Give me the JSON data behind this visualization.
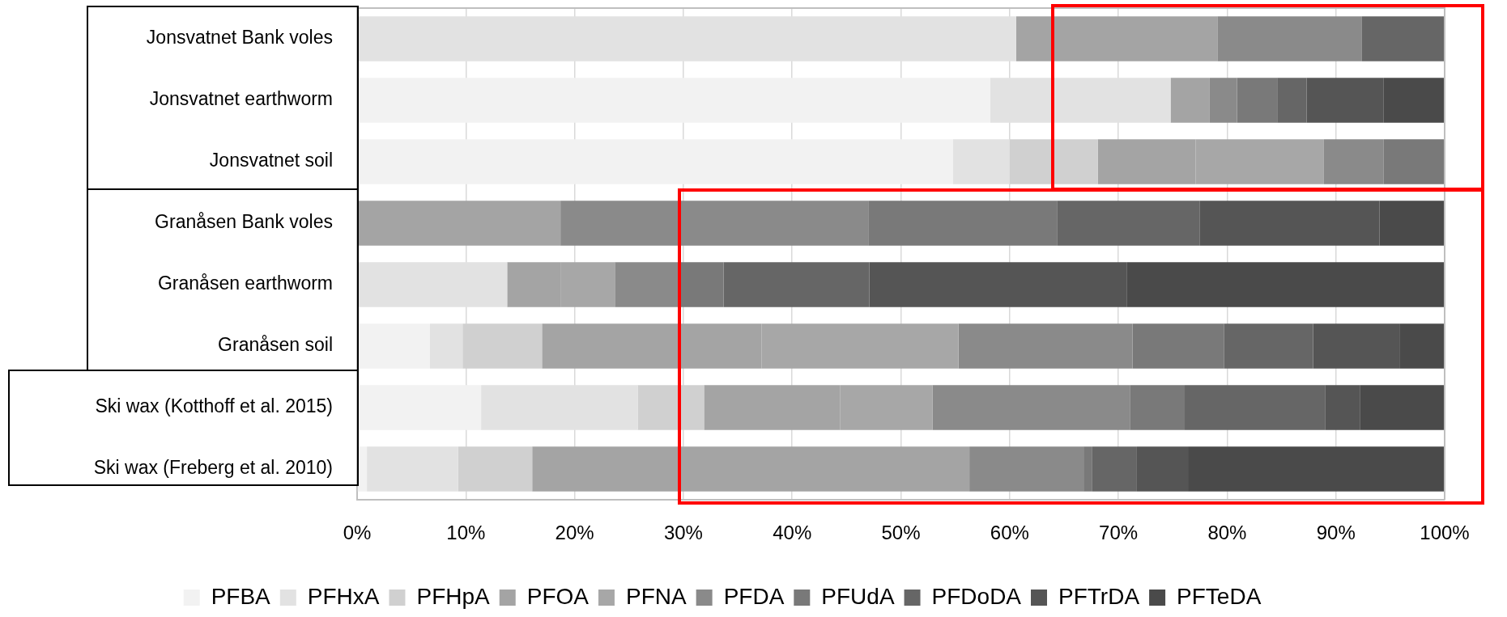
{
  "chart_data": {
    "type": "bar",
    "orientation": "horizontal",
    "stacked": true,
    "categories": [
      "Jonsvatnet Bank voles",
      "Jonsvatnet earthworm",
      "Jonsvatnet soil",
      "Granåsen Bank voles",
      "Granåsen earthworm",
      "Granåsen soil",
      "Ski wax (Kotthoff et al. 2015)",
      "Ski wax (Freberg et al. 2010)"
    ],
    "series": [
      {
        "name": "PFBA",
        "color": "#f2f2f2",
        "values": [
          0,
          58.2,
          54.8,
          0,
          0,
          6.7,
          11.4,
          0.9
        ]
      },
      {
        "name": "PFHxA",
        "color": "#e2e2e2",
        "values": [
          60.6,
          16.6,
          5.2,
          0,
          13.8,
          3.0,
          14.4,
          8.4
        ]
      },
      {
        "name": "PFHpA",
        "color": "#d0d0d0",
        "values": [
          0,
          0,
          8.1,
          0,
          0,
          7.3,
          6.1,
          6.8
        ]
      },
      {
        "name": "PFOA",
        "color": "#a4a4a4",
        "values": [
          18.5,
          3.6,
          9.0,
          18.7,
          4.9,
          20.2,
          12.5,
          40.2
        ]
      },
      {
        "name": "PFNA",
        "color": "#a7a7a7",
        "values": [
          0,
          0,
          11.8,
          0,
          5.0,
          18.1,
          8.5,
          0
        ]
      },
      {
        "name": "PFDA",
        "color": "#8a8a8a",
        "values": [
          13.3,
          2.5,
          5.5,
          28.3,
          5.8,
          16.0,
          18.2,
          10.5
        ]
      },
      {
        "name": "PFUdA",
        "color": "#797979",
        "values": [
          0,
          3.7,
          5.6,
          17.4,
          4.2,
          8.4,
          5.0,
          0.8
        ]
      },
      {
        "name": "PFDoDA",
        "color": "#666666",
        "values": [
          7.6,
          2.7,
          0,
          13.1,
          13.4,
          8.2,
          12.9,
          4.1
        ]
      },
      {
        "name": "PFTrDA",
        "color": "#555555",
        "values": [
          0,
          7.1,
          0,
          16.5,
          23.7,
          8.0,
          3.2,
          4.7
        ]
      },
      {
        "name": "PFTeDA",
        "color": "#4a4a4a",
        "values": [
          0,
          5.6,
          0,
          6.0,
          29.2,
          4.1,
          7.8,
          23.6
        ]
      }
    ],
    "xlim": [
      0,
      100
    ],
    "xticks": [
      {
        "value": 0,
        "label": "0%"
      },
      {
        "value": 10,
        "label": "10%"
      },
      {
        "value": 20,
        "label": "20%"
      },
      {
        "value": 30,
        "label": "30%"
      },
      {
        "value": 40,
        "label": "40%"
      },
      {
        "value": 50,
        "label": "50%"
      },
      {
        "value": 60,
        "label": "60%"
      },
      {
        "value": 70,
        "label": "70%"
      },
      {
        "value": 80,
        "label": "80%"
      },
      {
        "value": 90,
        "label": "90%"
      },
      {
        "value": 100,
        "label": "100%"
      }
    ],
    "grid": "x",
    "legend": "bottom"
  }
}
